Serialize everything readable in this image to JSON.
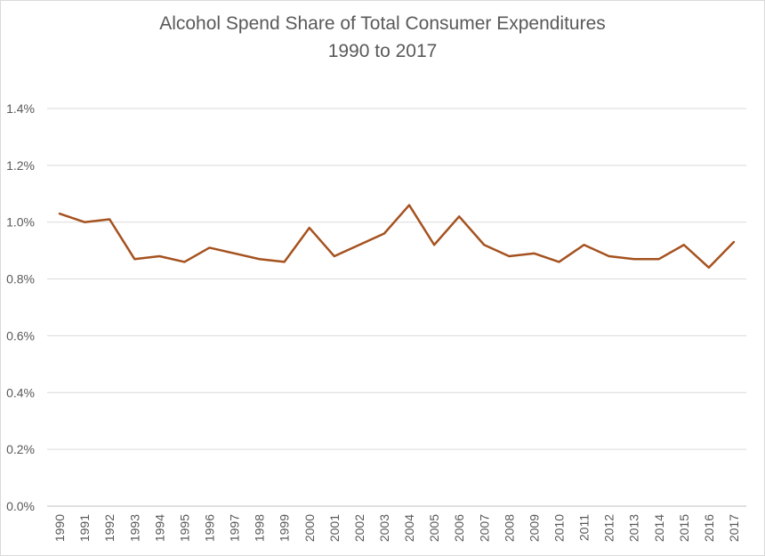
{
  "chart_data": {
    "type": "line",
    "title": "Alcohol Spend Share of Total Consumer Expenditures",
    "subtitle": "1990 to 2017",
    "xlabel": "",
    "ylabel": "",
    "categories": [
      "1990",
      "1991",
      "1992",
      "1993",
      "1994",
      "1995",
      "1996",
      "1997",
      "1998",
      "1999",
      "2000",
      "2001",
      "2002",
      "2003",
      "2004",
      "2005",
      "2006",
      "2007",
      "2008",
      "2009",
      "2010",
      "2011",
      "2012",
      "2013",
      "2014",
      "2015",
      "2016",
      "2017"
    ],
    "series": [
      {
        "values": [
          1.03,
          1.0,
          1.01,
          0.87,
          0.88,
          0.86,
          0.91,
          0.89,
          0.87,
          0.86,
          0.98,
          0.88,
          0.92,
          0.96,
          1.06,
          0.92,
          1.02,
          0.92,
          0.88,
          0.89,
          0.86,
          0.92,
          0.88,
          0.87,
          0.87,
          0.92,
          0.84,
          0.93
        ]
      }
    ],
    "ylim": [
      0,
      1.4
    ],
    "yticks": [
      "0.0%",
      "0.2%",
      "0.4%",
      "0.6%",
      "0.8%",
      "1.0%",
      "1.2%",
      "1.4%"
    ],
    "grid": true,
    "legend": "none",
    "line_color": "#a5521f"
  }
}
